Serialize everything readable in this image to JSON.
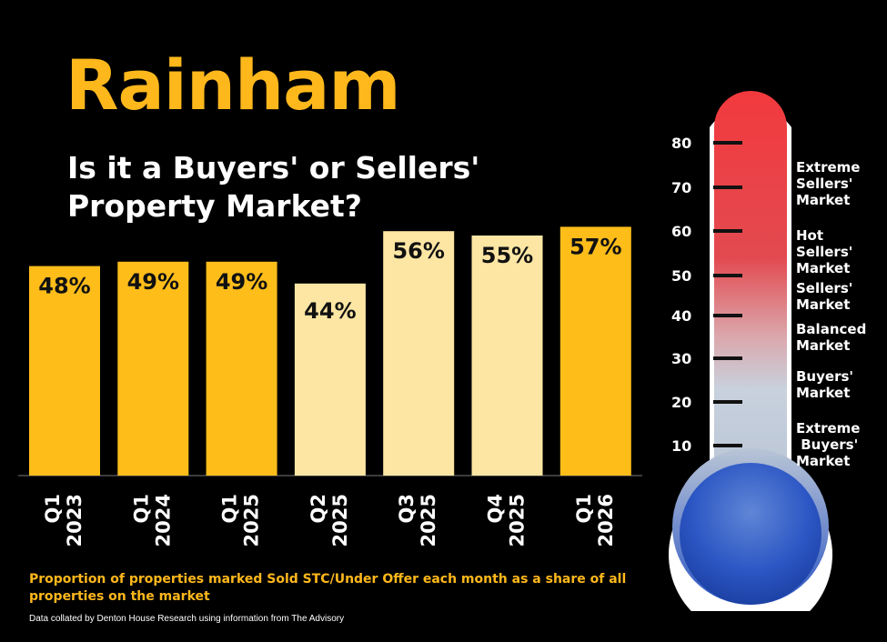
{
  "title": "Rainham",
  "subtitle": "Is it a Buyers' or Sellers' Property Market?",
  "chart_data": {
    "type": "bar",
    "categories": [
      {
        "q": "Q1",
        "year": "2023"
      },
      {
        "q": "Q1",
        "year": "2024"
      },
      {
        "q": "Q1",
        "year": "2025"
      },
      {
        "q": "Q2",
        "year": "2025"
      },
      {
        "q": "Q3",
        "year": "2025"
      },
      {
        "q": "Q4",
        "year": "2025"
      },
      {
        "q": "Q1",
        "year": "2026"
      }
    ],
    "values": [
      48,
      49,
      49,
      44,
      56,
      55,
      57
    ],
    "labels": [
      "48%",
      "49%",
      "49%",
      "44%",
      "56%",
      "55%",
      "57%"
    ],
    "highlight": [
      true,
      true,
      true,
      false,
      false,
      false,
      true
    ],
    "colors": {
      "highlight": "#ffbd1a",
      "normal": "#fde6a4"
    },
    "ylim": [
      0,
      100
    ]
  },
  "footnote": "Proportion of properties marked Sold STC/Under Offer each month as a share of all properties on the market",
  "credit": "Data collated by Denton House Research using information from The Advisory",
  "thermometer": {
    "scale": [
      80,
      70,
      60,
      50,
      40,
      30,
      20,
      10
    ],
    "zones": [
      "Extreme\nSellers'\nMarket",
      "Hot\nSellers'\nMarket",
      "Sellers'\nMarket",
      "Balanced\nMarket",
      "Buyers'\nMarket",
      "Extreme\n Buyers'\nMarket"
    ],
    "colors": {
      "top": "#f0343a",
      "mid": "#c8d0dc",
      "bottom": "#1a44b8",
      "border": "#ffffff"
    }
  }
}
